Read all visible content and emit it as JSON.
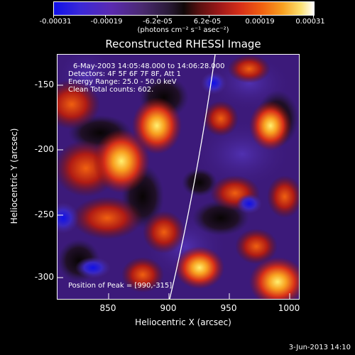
{
  "colorbar": {
    "tick_labels": [
      "-0.00031",
      "-0.00019",
      "-6.2e-05",
      "6.2e-05",
      "0.00019",
      "0.00031"
    ],
    "unit_label": "(photons cm⁻² s⁻¹ asec⁻²)"
  },
  "title": "Reconstructed RHESSI Image",
  "info": {
    "time_range": "6-May-2003 14:05:48.000 to 14:06:28.000",
    "detectors": "Detectors: 4F 5F 6F 7F 8F, Att 1",
    "energy_range": "Energy Range: 25.0 - 50.0 keV",
    "clean": "Clean    Total counts: 602.",
    "peak": "Position of Peak = [990,-315]"
  },
  "axes": {
    "xlabel": "Heliocentric X (arcsec)",
    "ylabel": "Heliocentric Y (arcsec)",
    "xticks": [
      "850",
      "900",
      "950",
      "1000"
    ],
    "yticks": [
      "-150",
      "-200",
      "-250",
      "-300"
    ]
  },
  "timestamp": "3-Jun-2013 14:10",
  "colors": {
    "background": "#000000",
    "map_base": "#3c1a7a",
    "limb_line": "#ffffff"
  }
}
